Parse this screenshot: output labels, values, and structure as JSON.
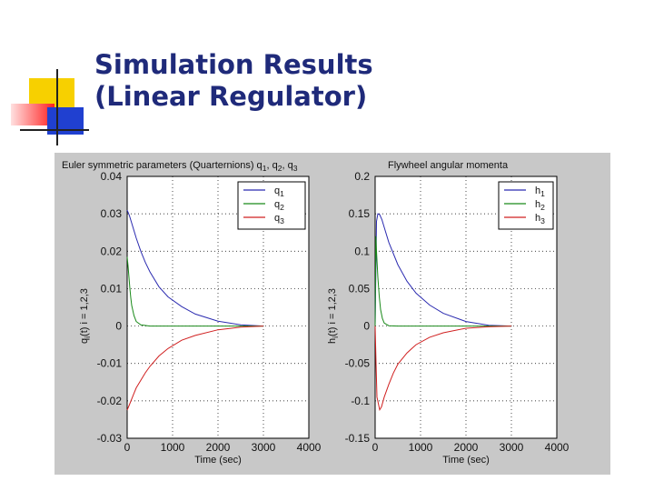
{
  "slide": {
    "title_line1": "Simulation Results",
    "title_line2": "(Linear Regulator)"
  },
  "colors": {
    "title": "#1f2a7a",
    "figure_bg": "#c8c8c8",
    "series_1": "#2b2bb0",
    "series_2": "#1a8a1a",
    "series_3": "#d02020",
    "deco_yellow": "#f7d000",
    "deco_red": "#ff2020",
    "deco_blue": "#2040d0"
  },
  "chart_data": [
    {
      "type": "line",
      "title": "Euler symmetric parameters (Quarternions) q",
      "title_subs": [
        "1",
        "2",
        "3"
      ],
      "xlabel": "Time (sec)",
      "ylabel": "q",
      "ylabel_sub": "i",
      "ylabel_rest": "(t) i = 1,2,3",
      "xlim": [
        0,
        4000
      ],
      "ylim": [
        -0.03,
        0.04
      ],
      "xticks": [
        0,
        1000,
        2000,
        3000,
        4000
      ],
      "xtick_labels": [
        "0",
        "1000",
        "2000",
        "3000",
        "4000"
      ],
      "yticks": [
        0.04,
        0.03,
        0.02,
        0.01,
        0,
        -0.01,
        -0.02,
        -0.03
      ],
      "ytick_labels": [
        "0.04",
        "0.03",
        "0.02",
        "0.01",
        "0",
        "-0.01",
        "-0.02",
        "-0.03"
      ],
      "grid": true,
      "legend_position": "top-right",
      "series": [
        {
          "name": "q",
          "sub": "1",
          "color": "#2b2bb0",
          "end": 3000,
          "x": [
            0,
            50,
            100,
            200,
            300,
            400,
            500,
            700,
            900,
            1200,
            1500,
            2000,
            2500,
            3000
          ],
          "y": [
            0.031,
            0.0295,
            0.0275,
            0.0235,
            0.02,
            0.017,
            0.0145,
            0.0105,
            0.0078,
            0.0052,
            0.0032,
            0.0013,
            0.0003,
            0.0
          ]
        },
        {
          "name": "q",
          "sub": "2",
          "color": "#1a8a1a",
          "end": 3000,
          "x": [
            0,
            20,
            40,
            60,
            80,
            100,
            150,
            200,
            300,
            500,
            3000
          ],
          "y": [
            0.0185,
            0.016,
            0.013,
            0.01,
            0.0075,
            0.0055,
            0.0028,
            0.0012,
            0.0003,
            0.0,
            0.0
          ]
        },
        {
          "name": "q",
          "sub": "3",
          "color": "#d02020",
          "end": 3000,
          "x": [
            0,
            50,
            100,
            150,
            200,
            300,
            400,
            500,
            700,
            900,
            1200,
            1500,
            2000,
            2500,
            3000
          ],
          "y": [
            -0.0225,
            -0.021,
            -0.0195,
            -0.018,
            -0.0165,
            -0.0145,
            -0.0125,
            -0.0108,
            -0.008,
            -0.006,
            -0.0038,
            -0.0025,
            -0.001,
            -0.0003,
            0.0
          ]
        }
      ]
    },
    {
      "type": "line",
      "title": "Flywheel angular momenta",
      "xlabel": "Time (sec)",
      "ylabel": "h",
      "ylabel_sub": "i",
      "ylabel_rest": "(t) i = 1,2,3",
      "xlim": [
        0,
        4000
      ],
      "ylim": [
        -0.15,
        0.2
      ],
      "xticks": [
        0,
        1000,
        2000,
        3000,
        4000
      ],
      "xtick_labels": [
        "0",
        "1000",
        "2000",
        "3000",
        "4000"
      ],
      "yticks": [
        0.2,
        0.15,
        0.1,
        0.05,
        0,
        -0.05,
        -0.1,
        -0.15
      ],
      "ytick_labels": [
        "0.2",
        "0.15",
        "0.1",
        "0.05",
        "0",
        "-0.05",
        "-0.1",
        "-0.15"
      ],
      "grid": true,
      "legend_position": "top-right",
      "series": [
        {
          "name": "h",
          "sub": "1",
          "color": "#2b2bb0",
          "end": 3000,
          "x": [
            0,
            30,
            60,
            100,
            150,
            200,
            300,
            500,
            700,
            900,
            1200,
            1500,
            2000,
            2500,
            3000
          ],
          "y": [
            0.0,
            0.14,
            0.15,
            0.149,
            0.142,
            0.132,
            0.112,
            0.082,
            0.06,
            0.044,
            0.028,
            0.017,
            0.006,
            0.001,
            0.0
          ]
        },
        {
          "name": "h",
          "sub": "2",
          "color": "#1a8a1a",
          "end": 3000,
          "x": [
            0,
            15,
            30,
            60,
            90,
            120,
            160,
            200,
            300,
            500,
            3000
          ],
          "y": [
            0.0,
            0.12,
            0.1,
            0.065,
            0.04,
            0.022,
            0.01,
            0.004,
            0.0005,
            0.0,
            0.0
          ]
        },
        {
          "name": "h",
          "sub": "3",
          "color": "#d02020",
          "end": 3000,
          "x": [
            0,
            20,
            40,
            100,
            140,
            200,
            300,
            400,
            500,
            700,
            900,
            1200,
            1500,
            2000,
            2500,
            3000
          ],
          "y": [
            0.0,
            -0.05,
            -0.095,
            -0.112,
            -0.108,
            -0.095,
            -0.078,
            -0.063,
            -0.051,
            -0.036,
            -0.025,
            -0.015,
            -0.009,
            -0.003,
            -0.001,
            0.0
          ]
        }
      ]
    }
  ]
}
